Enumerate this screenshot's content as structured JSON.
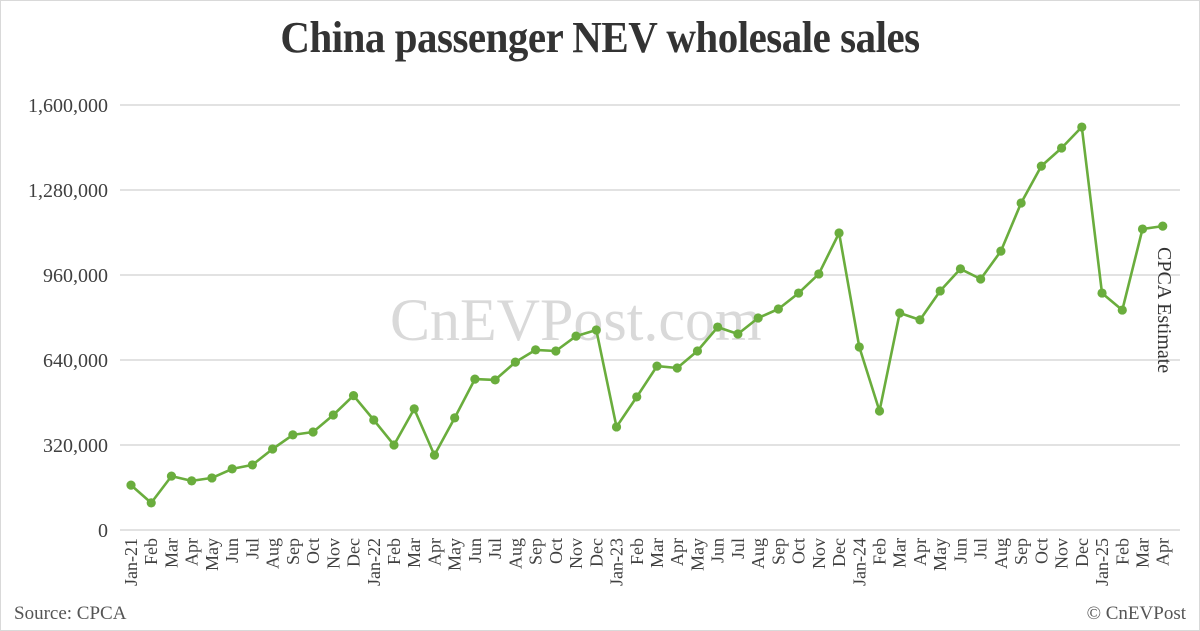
{
  "title": "China passenger NEV wholesale sales",
  "watermark": "CnEVPost.com",
  "annotation": "CPCA Estimate",
  "footer": {
    "source": "Source: CPCA",
    "copyright": "© CnEVPost"
  },
  "colors": {
    "line": "#6aad3d",
    "grid": "#d9d9d9",
    "text": "#404040"
  },
  "chart_data": {
    "type": "line",
    "title": "China passenger NEV wholesale sales",
    "xlabel": "",
    "ylabel": "",
    "ylim": [
      0,
      1600000
    ],
    "yticks": [
      0,
      320000,
      640000,
      960000,
      1280000,
      1600000
    ],
    "ytick_labels": [
      "0",
      "320,000",
      "640,000",
      "960,000",
      "1,280,000",
      "1,600,000"
    ],
    "grid": true,
    "legend": null,
    "annotations": [
      "CPCA Estimate",
      "CnEVPost.com"
    ],
    "categories": [
      "Jan-21",
      "Feb",
      "Mar",
      "Apr",
      "May",
      "Jun",
      "Jul",
      "Aug",
      "Sep",
      "Oct",
      "Nov",
      "Dec",
      "Jan-22",
      "Feb",
      "Mar",
      "Apr",
      "May",
      "Jun",
      "Jul",
      "Aug",
      "Sep",
      "Oct",
      "Nov",
      "Dec",
      "Jan-23",
      "Feb",
      "Mar",
      "Apr",
      "May",
      "Jun",
      "Jul",
      "Aug",
      "Sep",
      "Oct",
      "Nov",
      "Dec",
      "Jan-24",
      "Feb",
      "Mar",
      "Apr",
      "May",
      "Jun",
      "Jul",
      "Aug",
      "Sep",
      "Oct",
      "Nov",
      "Dec",
      "Jan-25",
      "Feb",
      "Mar",
      "Apr"
    ],
    "series": [
      {
        "name": "NEV wholesale sales",
        "values": [
          169000,
          102000,
          203000,
          185000,
          196000,
          230000,
          245000,
          305000,
          358000,
          369000,
          433000,
          506000,
          414000,
          320000,
          456000,
          282000,
          422000,
          568000,
          565000,
          632000,
          678000,
          674000,
          730000,
          753000,
          388000,
          501000,
          617000,
          610000,
          674000,
          764000,
          738000,
          798000,
          832000,
          892000,
          964000,
          1118000,
          689000,
          448000,
          817000,
          791000,
          900000,
          983000,
          945000,
          1050000,
          1231000,
          1370000,
          1438000,
          1517000,
          892000,
          828000,
          1133000,
          1144000
        ]
      }
    ]
  }
}
